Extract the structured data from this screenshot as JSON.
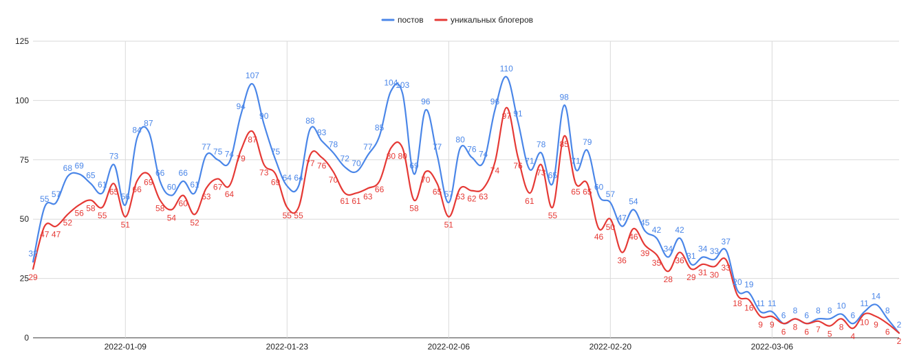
{
  "chart_data": {
    "type": "line",
    "title": "",
    "xlabel": "",
    "ylabel": "",
    "ylim": [
      0,
      125
    ],
    "y_ticks": [
      0,
      25,
      50,
      75,
      100,
      125
    ],
    "x_tick_labels": [
      "2022-01-09",
      "2022-01-23",
      "2022-02-06",
      "2022-02-20",
      "2022-03-06"
    ],
    "x_tick_indices": [
      8,
      22,
      36,
      50,
      64
    ],
    "grid": true,
    "legend_position": "top-center",
    "series": [
      {
        "name": "постов",
        "color": "#4a86e8",
        "values": [
          32,
          55,
          57,
          68,
          69,
          65,
          61,
          73,
          56,
          84,
          87,
          66,
          60,
          66,
          61,
          77,
          75,
          74,
          94,
          107,
          90,
          75,
          64,
          64,
          88,
          83,
          78,
          72,
          70,
          77,
          85,
          104,
          103,
          69,
          96,
          77,
          57,
          80,
          76,
          74,
          96,
          110,
          91,
          71,
          78,
          65,
          98,
          71,
          79,
          60,
          57,
          47,
          54,
          45,
          42,
          34,
          42,
          31,
          34,
          33,
          37,
          20,
          19,
          11,
          11,
          6,
          8,
          6,
          8,
          8,
          10,
          6,
          11,
          14,
          8,
          2
        ]
      },
      {
        "name": "уникальных блогеров",
        "color": "#e53935",
        "values": [
          29,
          47,
          47,
          52,
          56,
          58,
          55,
          65,
          51,
          66,
          69,
          58,
          54,
          60,
          52,
          63,
          67,
          64,
          79,
          87,
          73,
          69,
          55,
          55,
          77,
          76,
          70,
          61,
          61,
          63,
          66,
          80,
          80,
          58,
          70,
          65,
          51,
          63,
          62,
          63,
          74,
          97,
          76,
          61,
          73,
          55,
          85,
          65,
          65,
          46,
          50,
          36,
          46,
          39,
          35,
          28,
          36,
          29,
          31,
          30,
          33,
          18,
          16,
          9,
          9,
          6,
          8,
          6,
          7,
          5,
          8,
          4,
          10,
          9,
          6,
          2
        ]
      }
    ]
  }
}
